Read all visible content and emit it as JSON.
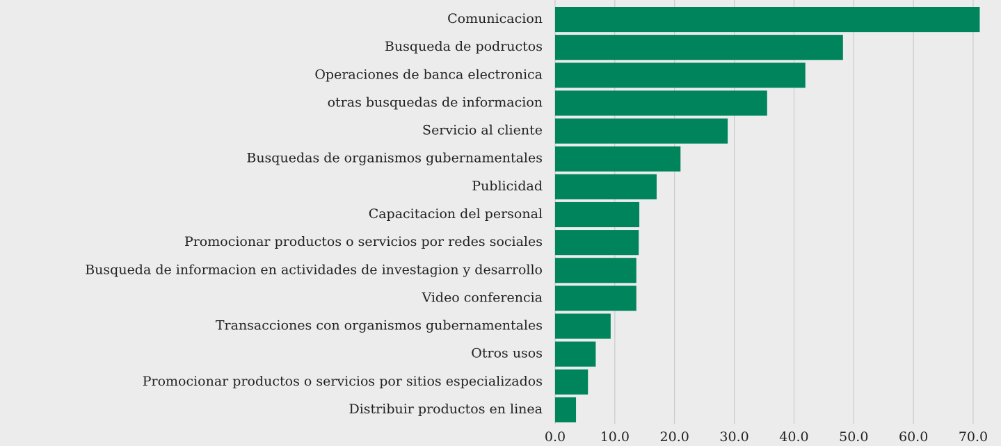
{
  "chart_data": {
    "type": "hbar",
    "color": "#00845c",
    "grid": true,
    "categories": [
      "Comunicacion",
      "Busqueda de podructos",
      "Operaciones de banca electronica",
      "otras busquedas de informacion",
      "Servicio al cliente",
      "Busquedas de organismos gubernamentales",
      "Publicidad",
      "Capacitacion del personal",
      "Promocionar productos o servicios por redes sociales",
      "Busqueda de informacion en actividades de investagion y desarrollo",
      "Video conferencia",
      "Transacciones con organismos gubernamentales",
      "Otros usos",
      "Promocionar productos o servicios por sitios especializados",
      "Distribuir productos en linea"
    ],
    "values": [
      71.1,
      48.2,
      41.9,
      35.5,
      28.9,
      21.0,
      17.0,
      14.1,
      14.0,
      13.6,
      13.6,
      9.3,
      6.8,
      5.5,
      3.5
    ],
    "xlim": [
      0,
      70
    ],
    "xticks": [
      {
        "value": 0,
        "label": "0.0"
      },
      {
        "value": 10,
        "label": "10.0"
      },
      {
        "value": 20,
        "label": "20.0"
      },
      {
        "value": 30,
        "label": "30.0"
      },
      {
        "value": 40,
        "label": "40.0"
      },
      {
        "value": 50,
        "label": "50.0"
      },
      {
        "value": 60,
        "label": "60.0"
      },
      {
        "value": 70,
        "label": "70.0"
      }
    ]
  }
}
